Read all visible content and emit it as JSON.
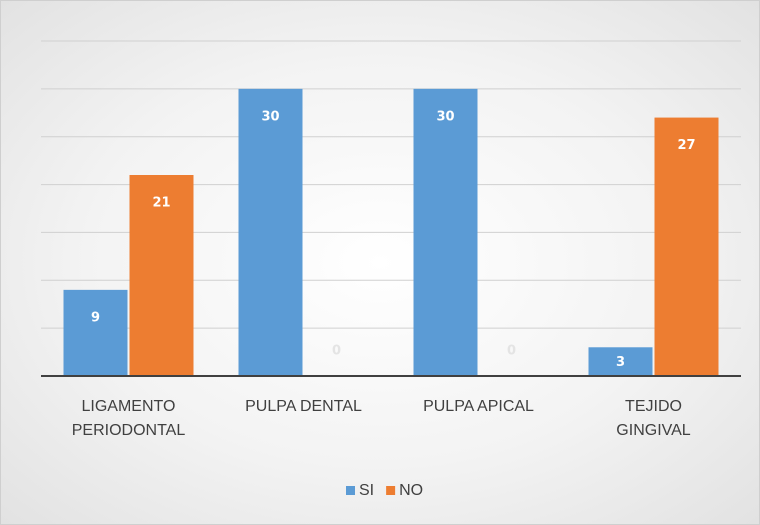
{
  "chart_data": {
    "type": "bar",
    "categories": [
      "LIGAMENTO\nPERIODONTAL",
      "PULPA DENTAL",
      "PULPA APICAL",
      "TEJIDO\nGINGIVAL"
    ],
    "series": [
      {
        "name": "SI",
        "color": "#5b9bd5",
        "values": [
          9,
          30,
          30,
          3
        ]
      },
      {
        "name": "NO",
        "color": "#ed7d31",
        "values": [
          21,
          0,
          0,
          27
        ]
      }
    ],
    "ylim": [
      0,
      35
    ],
    "yticks": [
      0,
      5,
      10,
      15,
      20,
      25,
      30,
      35
    ],
    "grid": true,
    "legend": "bottom"
  }
}
